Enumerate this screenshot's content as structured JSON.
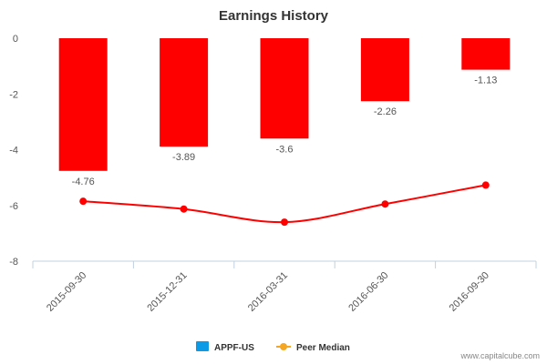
{
  "chart_data": {
    "type": "bar",
    "title": "Earnings History",
    "categories": [
      "2015-09-30",
      "2015-12-31",
      "2016-03-31",
      "2016-06-30",
      "2016-09-30"
    ],
    "series": [
      {
        "name": "APPF-US",
        "type": "bar",
        "values": [
          -4.76,
          -3.89,
          -3.6,
          -2.26,
          -1.13
        ],
        "data_labels": [
          "-4.76",
          "-3.89",
          "-3.6",
          "-2.26",
          "-1.13"
        ],
        "bar_color": "#ff0000",
        "legend_color": "#0b9ae6"
      },
      {
        "name": "Peer Median",
        "type": "line",
        "values": [
          -5.85,
          -6.13,
          -6.6,
          -5.95,
          -5.27
        ],
        "color": "#ff0000",
        "legend_color": "#f5a623"
      }
    ],
    "yticks": [
      "0",
      "-2",
      "-4",
      "-6",
      "-8"
    ],
    "ylim": [
      -8,
      0
    ],
    "grid": false,
    "legend_position": "bottom",
    "watermark": "www.capitalcube.com"
  },
  "colors": {
    "axis": "#c0d0e0",
    "tick_text": "#555555",
    "label_text": "#555555",
    "title_text": "#333333"
  }
}
